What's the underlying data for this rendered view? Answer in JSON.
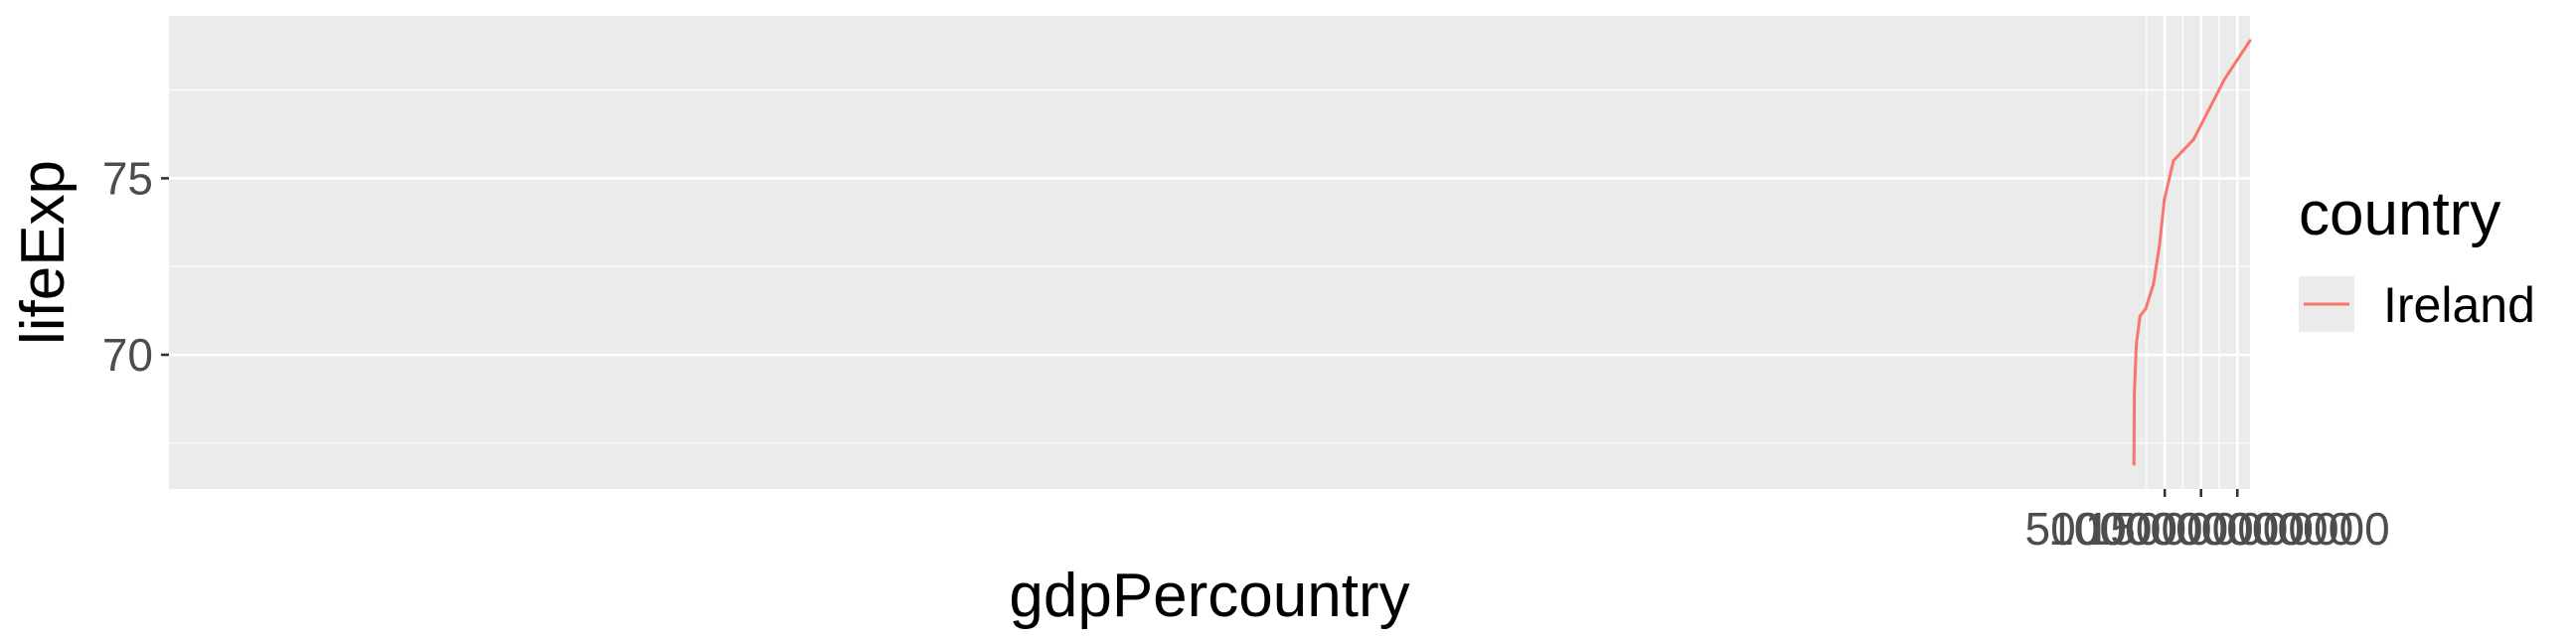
{
  "chart_data": {
    "type": "line",
    "title": "",
    "xlabel": "gdpPercountry",
    "ylabel": "lifeExp",
    "x_ticks": [
      50000000000,
      100000000000,
      150000000000
    ],
    "x_tick_labels": [
      "50000000000",
      "100000000000",
      "150000000000"
    ],
    "y_ticks": [
      70,
      75
    ],
    "y_tick_labels": [
      "70",
      "75"
    ],
    "xlim": [
      -2700000000000,
      167500000000
    ],
    "ylim": [
      66.2,
      79.6
    ],
    "grid": true,
    "legend": {
      "title": "country",
      "position": "right"
    },
    "series": [
      {
        "name": "Ireland",
        "color": "#F8766D",
        "points": [
          {
            "x": 7600000000,
            "y": 66.9
          },
          {
            "x": 8100000000,
            "y": 68.9
          },
          {
            "x": 10800000000,
            "y": 70.3
          },
          {
            "x": 15900000000,
            "y": 71.1
          },
          {
            "x": 23700000000,
            "y": 71.3
          },
          {
            "x": 34400000000,
            "y": 72.0
          },
          {
            "x": 42700000000,
            "y": 73.1
          },
          {
            "x": 49400000000,
            "y": 74.4
          },
          {
            "x": 62100000000,
            "y": 75.5
          },
          {
            "x": 89700000000,
            "y": 76.1
          },
          {
            "x": 132200000000,
            "y": 77.8
          },
          {
            "x": 167400000000,
            "y": 78.9
          }
        ]
      }
    ]
  }
}
